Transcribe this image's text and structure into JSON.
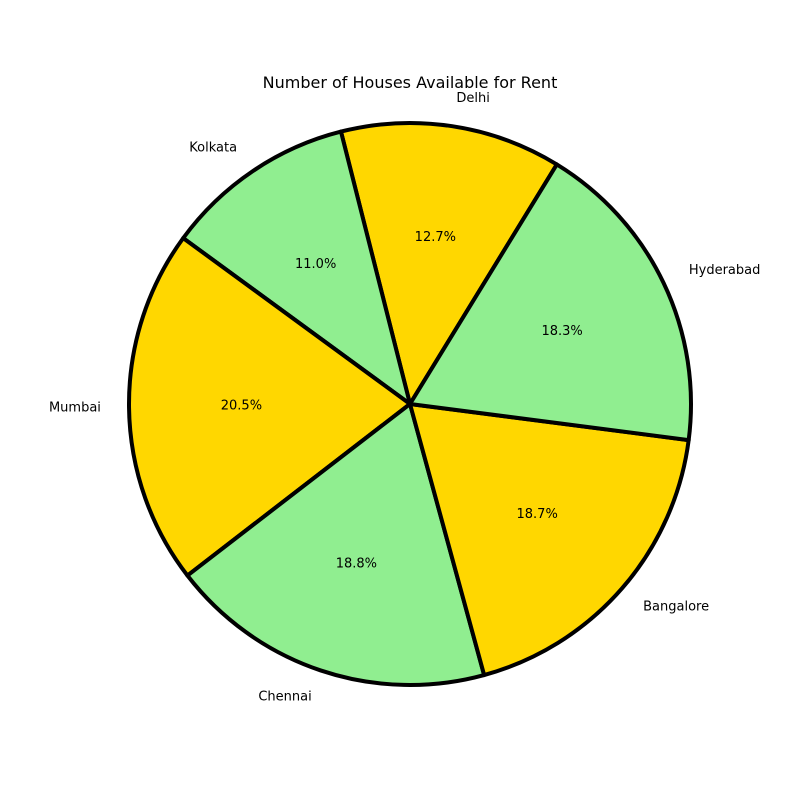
{
  "chart_data": {
    "type": "pie",
    "title": "Number of Houses Available for Rent",
    "categories": [
      "Delhi",
      "Kolkata",
      "Mumbai",
      "Chennai",
      "Bangalore",
      "Hyderabad"
    ],
    "percentages": [
      12.7,
      11.0,
      20.5,
      18.8,
      18.7,
      18.3
    ],
    "percent_labels": [
      "12.7%",
      "11.0%",
      "20.5%",
      "18.8%",
      "18.7%",
      "18.3%"
    ],
    "colors": [
      "#FFD700",
      "#90EE90",
      "#FFD700",
      "#90EE90",
      "#FFD700",
      "#90EE90"
    ],
    "edge_color": "#000000",
    "direction": "counterclockwise",
    "legend": "none"
  }
}
